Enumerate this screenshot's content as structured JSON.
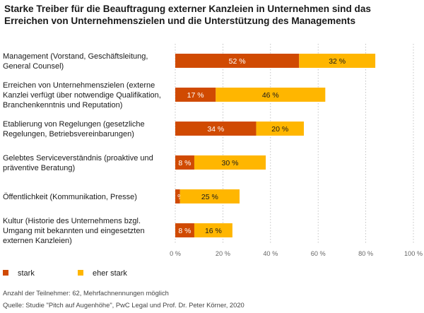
{
  "title_lines": [
    "Starke Treiber für die Beauftragung externer Kanzleien in Unternehmen sind das",
    "Erreichen von Unternehmenszielen und die Unterstützung des Managements"
  ],
  "footnotes": [
    "Anzahl der Teilnehmer: 62, Mehrfachnennungen möglich",
    "Quelle: Studie \"Pitch auf Augenhöhe\", PwC Legal und Prof. Dr. Peter Körner, 2020"
  ],
  "colors": {
    "stark": "#d04a02",
    "eher_stark": "#ffb600",
    "grid": "#b5b5b5"
  },
  "chart_data": {
    "type": "bar",
    "orientation": "horizontal",
    "stacked": true,
    "title": "Starke Treiber für die Beauftragung externer Kanzleien in Unternehmen sind das Erreichen von Unternehmenszielen und die Unterstützung des Managements",
    "categories": [
      [
        "Management (Vorstand, Geschäftsleitung,",
        "General Counsel)"
      ],
      [
        "Erreichen von Unternehmenszielen (externe",
        "Kanzlei verfügt über notwendige Qualifikation,",
        "Branchenkenntnis und Reputation)"
      ],
      [
        "Etablierung von Regelungen (gesetzliche",
        "Regelungen, Betriebsvereinbarungen)"
      ],
      [
        "Gelebtes Serviceverständnis (proaktive und",
        "präventive Beratung)"
      ],
      [
        "Öffentlichkeit (Kommunikation, Presse)"
      ],
      [
        "Kultur (Historie des Unternehmens bzgl.",
        "Umgang mit bekannten und eingesetzten",
        "externen Kanzleien)"
      ]
    ],
    "series": [
      {
        "name": "stark",
        "values": [
          52,
          17,
          34,
          8,
          2,
          8
        ],
        "labels": [
          "52 %",
          "17 %",
          "34 %",
          "8 %",
          "2 %",
          "8 %"
        ]
      },
      {
        "name": "eher stark",
        "values": [
          32,
          46,
          20,
          30,
          25,
          16
        ],
        "labels": [
          "32 %",
          "46 %",
          "20 %",
          "30 %",
          "25 %",
          "16 %"
        ]
      }
    ],
    "xlim": [
      0,
      100
    ],
    "xticks": [
      0,
      20,
      40,
      60,
      80,
      100
    ],
    "xtick_labels": [
      "0 %",
      "20 %",
      "40 %",
      "60 %",
      "80 %",
      "100 %"
    ],
    "grid": true,
    "legend": {
      "position": "bottom-left",
      "entries": [
        "stark",
        "eher stark"
      ]
    }
  }
}
